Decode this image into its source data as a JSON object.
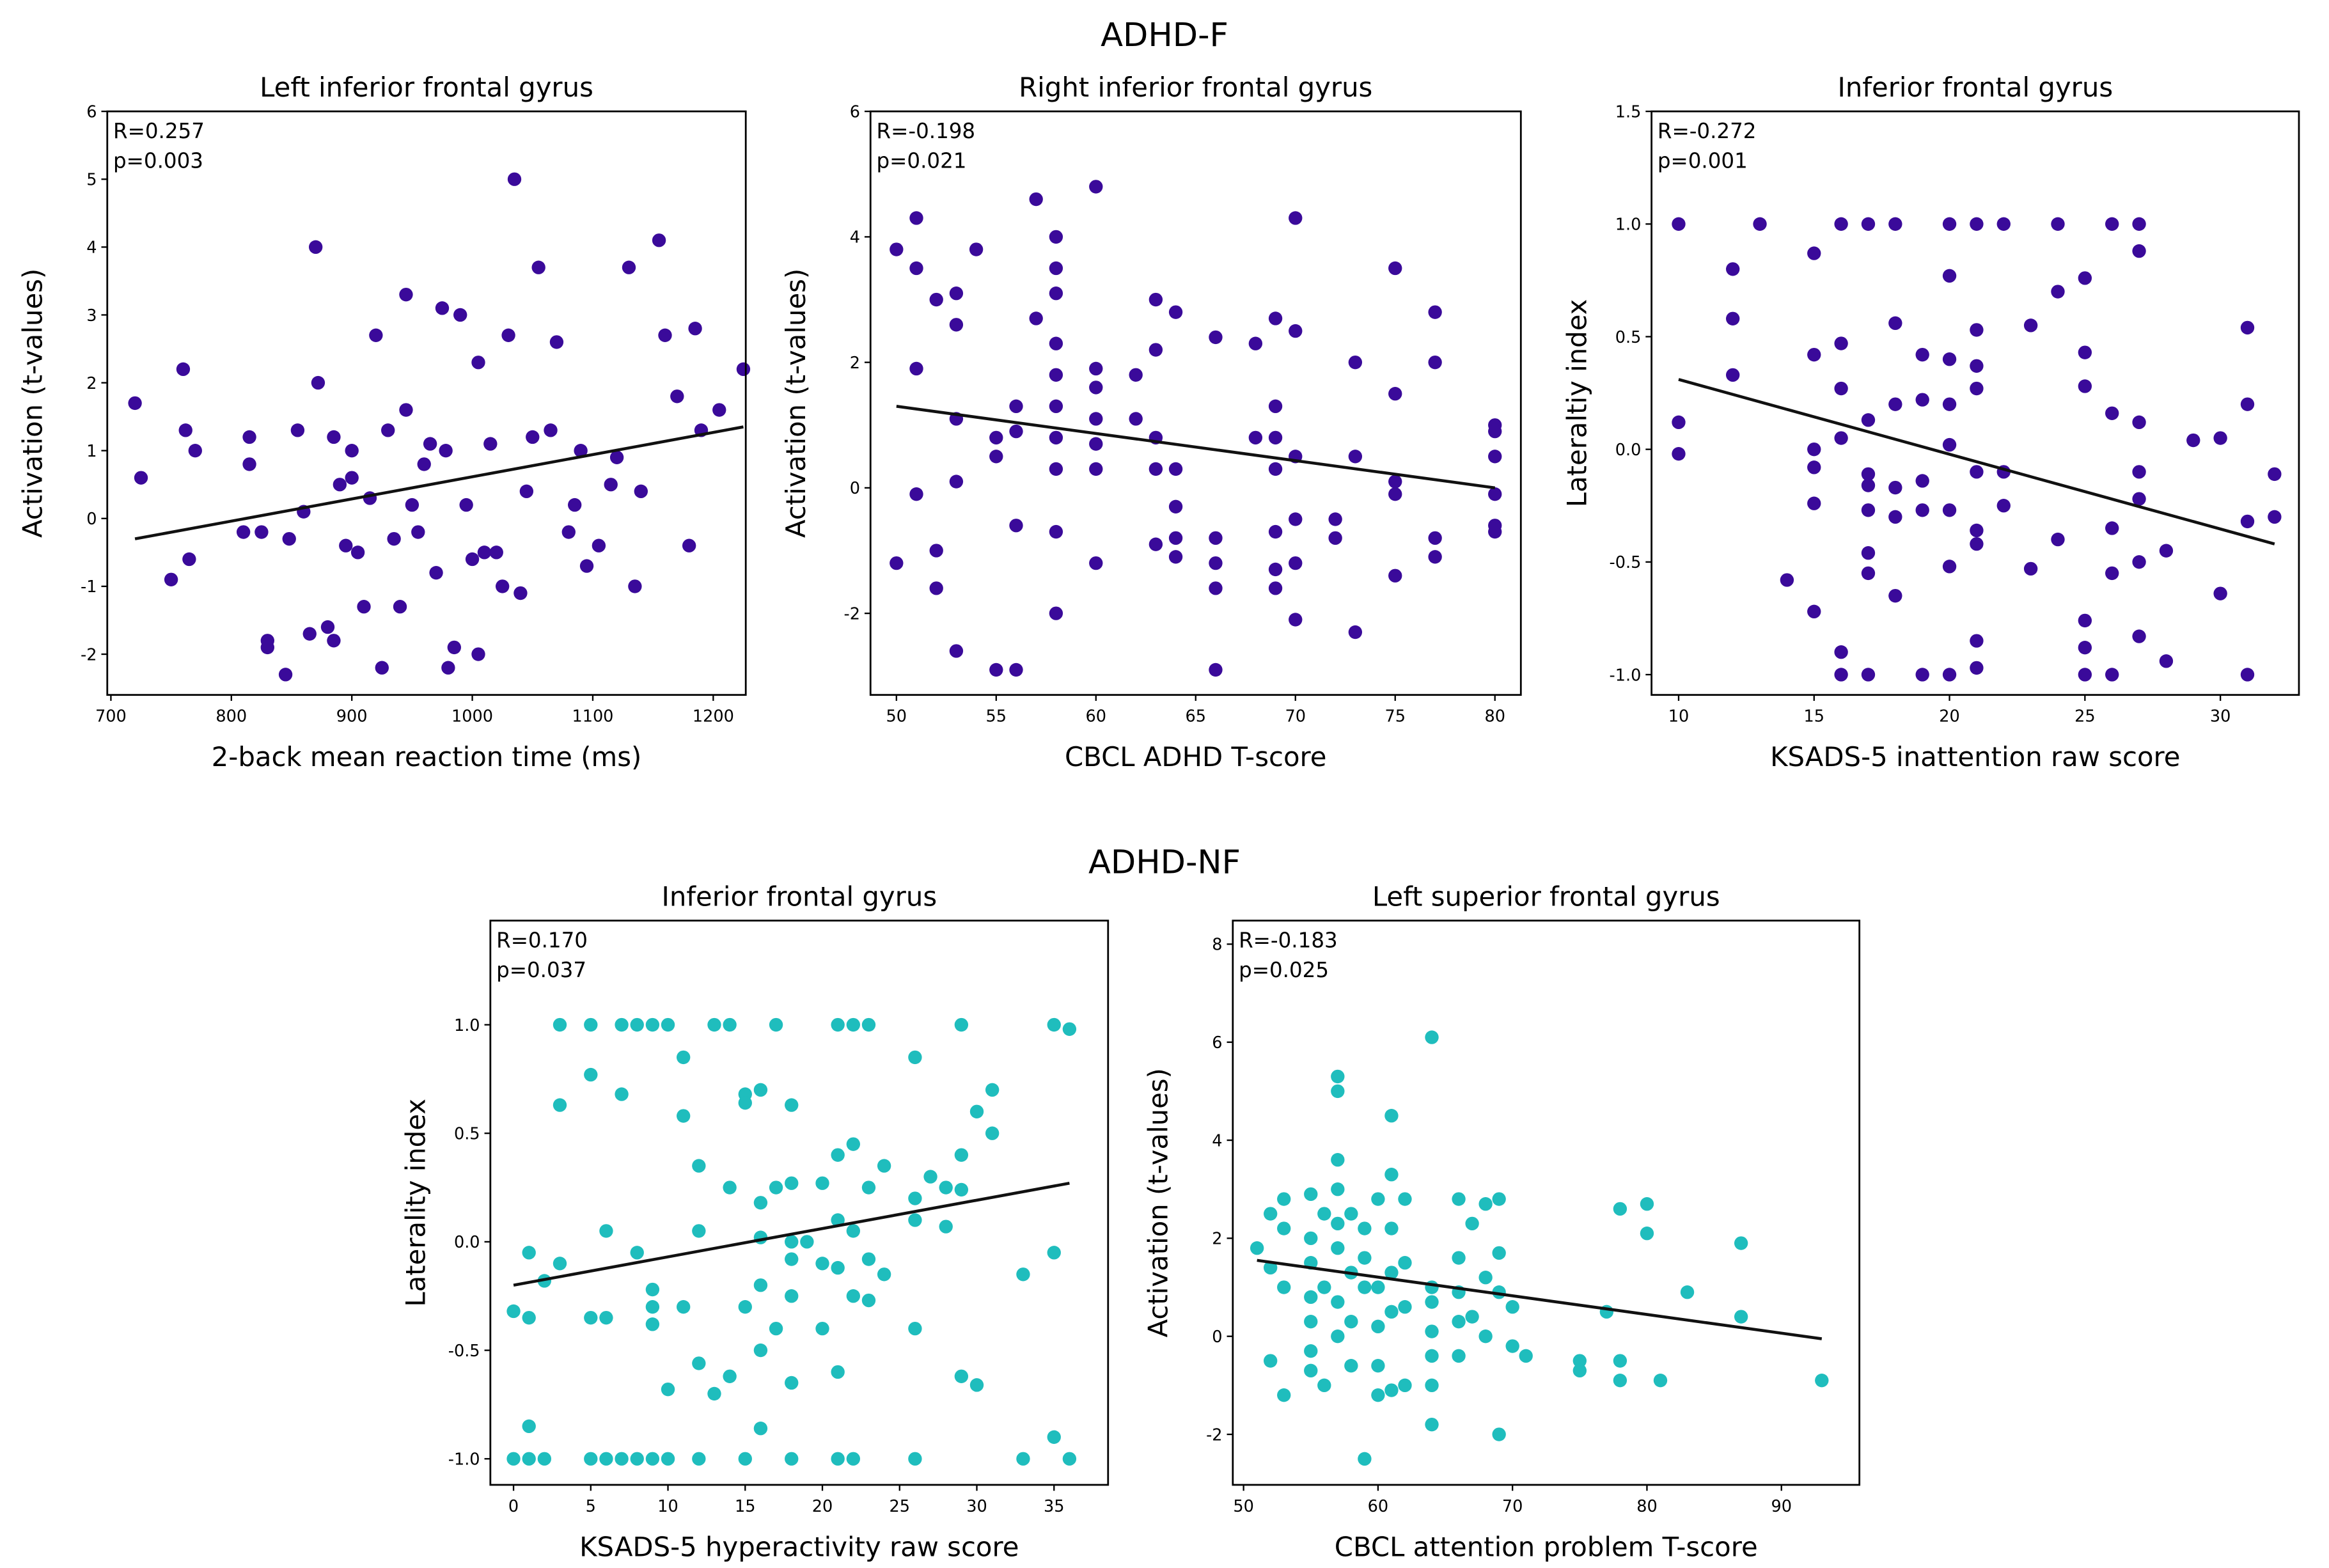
{
  "headings": [
    "ADHD-F",
    "ADHD-NF"
  ],
  "chart_data": [
    {
      "type": "scatter",
      "title": "Left inferior frontal gyrus",
      "x_label": "2-back mean reaction time (ms)",
      "y_label": "Activation (t-values)",
      "annotations": [
        "R=0.257",
        "p=0.003"
      ],
      "color": "#3a0a9a",
      "xlim": [
        697,
        1227
      ],
      "ylim": [
        -2.6,
        6.0
      ],
      "xticks": [
        700,
        800,
        900,
        1000,
        1100,
        1200
      ],
      "yticks": [
        -2,
        -1,
        0,
        1,
        2,
        3,
        4,
        5,
        6
      ],
      "x": [
        720,
        725,
        750,
        760,
        762,
        765,
        770,
        810,
        815,
        815,
        825,
        830,
        830,
        845,
        848,
        855,
        860,
        865,
        870,
        872,
        880,
        885,
        885,
        890,
        895,
        900,
        900,
        905,
        910,
        915,
        920,
        925,
        930,
        935,
        940,
        945,
        945,
        950,
        955,
        960,
        965,
        970,
        975,
        978,
        980,
        985,
        990,
        995,
        1000,
        1005,
        1005,
        1010,
        1015,
        1020,
        1025,
        1030,
        1035,
        1040,
        1045,
        1050,
        1055,
        1065,
        1070,
        1080,
        1085,
        1090,
        1095,
        1105,
        1115,
        1120,
        1130,
        1135,
        1140,
        1155,
        1160,
        1170,
        1180,
        1185,
        1190,
        1205,
        1225
      ],
      "y": [
        1.7,
        0.6,
        -0.9,
        2.2,
        1.3,
        -0.6,
        1.0,
        -0.2,
        1.2,
        0.8,
        -0.2,
        -1.8,
        -1.9,
        -2.3,
        -0.3,
        1.3,
        0.1,
        -1.7,
        4.0,
        2.0,
        -1.6,
        1.2,
        -1.8,
        0.5,
        -0.4,
        1.0,
        0.6,
        -0.5,
        -1.3,
        0.3,
        2.7,
        -2.2,
        1.3,
        -0.3,
        -1.3,
        3.3,
        1.6,
        0.2,
        -0.2,
        0.8,
        1.1,
        -0.8,
        3.1,
        1.0,
        -2.2,
        -1.9,
        3.0,
        0.2,
        -0.6,
        2.3,
        -2.0,
        -0.5,
        1.1,
        -0.5,
        -1.0,
        2.7,
        5.0,
        -1.1,
        0.4,
        1.2,
        3.7,
        1.3,
        2.6,
        -0.2,
        0.2,
        1.0,
        -0.7,
        -0.4,
        0.5,
        0.9,
        3.7,
        -1.0,
        0.4,
        4.1,
        2.7,
        1.8,
        -0.4,
        2.8,
        1.3,
        1.6,
        2.2
      ],
      "trend_line": {
        "x": [
          720,
          1225
        ],
        "y": [
          -0.3,
          1.35
        ]
      }
    },
    {
      "type": "scatter",
      "title": "Right inferior frontal gyrus",
      "x_label": "CBCL ADHD T-score",
      "y_label": "Activation (t-values)",
      "annotations": [
        "R=-0.198",
        "p=0.021"
      ],
      "color": "#3a0a9a",
      "xlim": [
        48.7,
        81.3
      ],
      "ylim": [
        -3.3,
        6.0
      ],
      "xticks": [
        50,
        55,
        60,
        65,
        70,
        75,
        80
      ],
      "yticks": [
        -2,
        0,
        2,
        4,
        6
      ],
      "x": [
        50,
        50,
        51,
        51,
        51,
        51,
        52,
        52,
        52,
        53,
        53,
        53,
        53,
        53,
        54,
        55,
        55,
        55,
        56,
        56,
        56,
        56,
        57,
        57,
        58,
        58,
        58,
        58,
        58,
        58,
        58,
        58,
        58,
        58,
        60,
        60,
        60,
        60,
        60,
        60,
        60,
        62,
        62,
        63,
        63,
        63,
        63,
        63,
        64,
        64,
        64,
        64,
        64,
        66,
        66,
        66,
        66,
        66,
        68,
        68,
        69,
        69,
        69,
        69,
        69,
        69,
        69,
        70,
        70,
        70,
        70,
        70,
        70,
        72,
        72,
        73,
        73,
        73,
        75,
        75,
        75,
        75,
        75,
        77,
        77,
        77,
        77,
        80,
        80,
        80,
        80,
        80,
        80
      ],
      "y": [
        3.8,
        -1.2,
        4.3,
        3.5,
        1.9,
        -0.1,
        3.0,
        -1.0,
        -1.6,
        3.1,
        2.6,
        1.1,
        0.1,
        -2.6,
        3.8,
        0.8,
        0.5,
        -2.9,
        1.3,
        0.9,
        -0.6,
        -2.9,
        4.6,
        2.7,
        4.0,
        3.5,
        3.1,
        2.3,
        1.8,
        1.3,
        0.8,
        0.3,
        -0.7,
        -2.0,
        4.8,
        1.9,
        1.6,
        1.1,
        0.7,
        0.3,
        -1.2,
        1.8,
        1.1,
        3.0,
        2.2,
        0.8,
        0.3,
        -0.9,
        2.8,
        0.3,
        -0.3,
        -0.8,
        -1.1,
        2.4,
        -0.8,
        -1.2,
        -1.6,
        -2.9,
        2.3,
        0.8,
        2.7,
        1.3,
        0.8,
        0.3,
        -0.7,
        -1.3,
        -1.6,
        4.3,
        2.5,
        0.5,
        -0.5,
        -1.2,
        -2.1,
        -0.5,
        -0.8,
        2.0,
        0.5,
        -2.3,
        3.5,
        1.5,
        0.1,
        -0.1,
        -1.4,
        2.8,
        2.0,
        -0.8,
        -1.1,
        1.0,
        0.9,
        0.5,
        -0.1,
        -0.6,
        -0.7
      ],
      "trend_line": {
        "x": [
          50,
          80
        ],
        "y": [
          1.3,
          0.0
        ]
      }
    },
    {
      "type": "scatter",
      "title": "Inferior frontal gyrus",
      "x_label": "KSADS-5 inattention raw score",
      "y_label": "Lateraltiy index",
      "annotations": [
        "R=-0.272",
        "p=0.001"
      ],
      "color": "#3a0a9a",
      "xlim": [
        9.0,
        32.9
      ],
      "ylim": [
        -1.09,
        1.5
      ],
      "xticks": [
        10,
        15,
        20,
        25,
        30
      ],
      "yticks": [
        {
          "value": -1,
          "label": "-1.0"
        },
        {
          "value": -0.5,
          "label": "-0.5"
        },
        {
          "value": 0,
          "label": "0.0"
        },
        {
          "value": 0.5,
          "label": "0.5"
        },
        {
          "value": 1,
          "label": "1.0"
        },
        {
          "value": 1.5,
          "label": "1.5"
        }
      ],
      "x": [
        10,
        10,
        10,
        12,
        12,
        12,
        13,
        14,
        15,
        15,
        15,
        15,
        15,
        15,
        16,
        16,
        16,
        16,
        16,
        16,
        17,
        17,
        17,
        17,
        17,
        17,
        17,
        17,
        18,
        18,
        18,
        18,
        18,
        18,
        19,
        19,
        19,
        19,
        19,
        20,
        20,
        20,
        20,
        20,
        20,
        20,
        20,
        21,
        21,
        21,
        21,
        21,
        21,
        21,
        21,
        21,
        22,
        22,
        22,
        23,
        23,
        24,
        24,
        24,
        25,
        25,
        25,
        25,
        25,
        25,
        26,
        26,
        26,
        26,
        26,
        27,
        27,
        27,
        27,
        27,
        27,
        27,
        28,
        28,
        29,
        30,
        30,
        31,
        31,
        31,
        31,
        32,
        32
      ],
      "y": [
        1.0,
        0.12,
        -0.02,
        0.8,
        0.58,
        0.33,
        1.0,
        -0.58,
        0.87,
        0.42,
        0,
        -0.08,
        -0.24,
        -0.72,
        1.0,
        0.47,
        0.27,
        -0.9,
        -1.0,
        0.05,
        1.0,
        0.13,
        -0.11,
        -0.16,
        -0.27,
        -0.46,
        -0.55,
        -1.0,
        1.0,
        0.56,
        0.2,
        -0.17,
        -0.3,
        -0.65,
        0.42,
        0.22,
        -0.14,
        -0.27,
        -1.0,
        1.0,
        0.77,
        0.4,
        0.2,
        0.02,
        -0.27,
        -0.52,
        -1.0,
        1.0,
        0.53,
        0.37,
        0.27,
        -0.1,
        -0.36,
        -0.42,
        -0.85,
        -0.97,
        1.0,
        -0.25,
        -0.1,
        0.55,
        -0.53,
        1.0,
        0.7,
        -0.4,
        0.76,
        0.43,
        0.28,
        -0.76,
        -0.88,
        -1.0,
        1.0,
        0.16,
        -0.35,
        -0.55,
        -1.0,
        1.0,
        0.88,
        0.12,
        -0.1,
        -0.22,
        -0.5,
        -0.83,
        -0.45,
        -0.94,
        0.04,
        0.05,
        -0.64,
        0.54,
        0.2,
        -0.32,
        -1.0,
        -0.11,
        -0.3
      ],
      "trend_line": {
        "x": [
          10,
          32
        ],
        "y": [
          0.31,
          -0.42
        ]
      }
    },
    {
      "type": "scatter",
      "title": "Inferior frontal gyrus",
      "x_label": "KSADS-5 hyperactivity raw score",
      "y_label": "Laterality index",
      "annotations": [
        "R=0.170",
        "p=0.037"
      ],
      "color": "#1fbdbd",
      "xlim": [
        -1.5,
        38.5
      ],
      "ylim": [
        -1.12,
        1.48
      ],
      "xticks": [
        0,
        5,
        10,
        15,
        20,
        25,
        30,
        35
      ],
      "yticks": [
        {
          "value": -1,
          "label": "-1.0"
        },
        {
          "value": -0.5,
          "label": "-0.5"
        },
        {
          "value": 0,
          "label": "0.0"
        },
        {
          "value": 0.5,
          "label": "0.5"
        },
        {
          "value": 1,
          "label": "1.0"
        }
      ],
      "x": [
        0,
        0,
        1,
        1,
        1,
        1,
        2,
        2,
        3,
        3,
        3,
        5,
        5,
        5,
        5,
        6,
        6,
        6,
        7,
        7,
        7,
        8,
        8,
        8,
        9,
        9,
        9,
        9,
        9,
        10,
        10,
        10,
        11,
        11,
        11,
        12,
        12,
        12,
        12,
        13,
        13,
        14,
        14,
        14,
        15,
        15,
        15,
        15,
        16,
        16,
        16,
        16,
        16,
        16,
        17,
        17,
        17,
        18,
        18,
        18,
        18,
        18,
        18,
        18,
        19,
        20,
        20,
        20,
        21,
        21,
        21,
        21,
        21,
        21,
        22,
        22,
        22,
        22,
        22,
        23,
        23,
        23,
        23,
        24,
        24,
        26,
        26,
        26,
        26,
        26,
        27,
        28,
        28,
        29,
        29,
        29,
        29,
        30,
        30,
        31,
        31,
        33,
        33,
        35,
        35,
        35,
        36,
        36
      ],
      "y": [
        -0.32,
        -1.0,
        -0.05,
        -0.35,
        -0.85,
        -1.0,
        -0.18,
        -1.0,
        1.0,
        0.63,
        -0.1,
        1.0,
        0.77,
        -0.35,
        -1.0,
        0.05,
        -0.35,
        -1.0,
        1.0,
        0.68,
        -1.0,
        1.0,
        -0.05,
        -1.0,
        1.0,
        -0.22,
        -0.3,
        -0.38,
        -1.0,
        1.0,
        -0.68,
        -1.0,
        0.85,
        0.58,
        -0.3,
        0.35,
        0.05,
        -0.56,
        -1.0,
        1.0,
        -0.7,
        1.0,
        0.25,
        -0.62,
        0.68,
        0.64,
        -0.3,
        -1.0,
        0.7,
        0.18,
        0.02,
        -0.2,
        -0.5,
        -0.86,
        1.0,
        0.25,
        -0.4,
        0.63,
        0.27,
        0.0,
        -0.08,
        -0.25,
        -0.65,
        -1.0,
        0.0,
        0.27,
        -0.1,
        -0.4,
        1.0,
        0.4,
        0.1,
        -0.12,
        -0.6,
        -1.0,
        1.0,
        0.45,
        0.05,
        -0.25,
        -1.0,
        1.0,
        0.25,
        -0.08,
        -0.27,
        0.35,
        -0.15,
        0.85,
        0.2,
        0.1,
        -0.4,
        -1.0,
        0.3,
        0.25,
        0.07,
        1.0,
        0.4,
        0.24,
        -0.62,
        0.6,
        -0.66,
        0.7,
        0.5,
        -0.15,
        -1.0,
        1.0,
        -0.05,
        -0.9,
        0.98,
        -1.0
      ],
      "trend_line": {
        "x": [
          0,
          36
        ],
        "y": [
          -0.2,
          0.27
        ]
      }
    },
    {
      "type": "scatter",
      "title": "Left superior frontal gyrus",
      "x_label": "CBCL attention problem T-score",
      "y_label": "Activation (t-values)",
      "annotations": [
        "R=-0.183",
        "p=0.025"
      ],
      "color": "#1fbdbd",
      "xlim": [
        49.2,
        95.8
      ],
      "ylim": [
        -3.03,
        8.48
      ],
      "xticks": [
        50,
        60,
        70,
        80,
        90
      ],
      "yticks": [
        -2,
        0,
        2,
        4,
        6,
        8
      ],
      "x": [
        51,
        52,
        52,
        52,
        53,
        53,
        53,
        53,
        55,
        55,
        55,
        55,
        55,
        55,
        55,
        56,
        56,
        56,
        57,
        57,
        57,
        57,
        57,
        57,
        57,
        57,
        58,
        58,
        58,
        58,
        59,
        59,
        59,
        59,
        60,
        60,
        60,
        60,
        60,
        61,
        61,
        61,
        61,
        61,
        61,
        62,
        62,
        62,
        62,
        64,
        64,
        64,
        64,
        64,
        64,
        64,
        66,
        66,
        66,
        66,
        66,
        67,
        67,
        68,
        68,
        68,
        69,
        69,
        69,
        69,
        70,
        70,
        71,
        75,
        75,
        77,
        78,
        78,
        78,
        80,
        80,
        81,
        83,
        87,
        87,
        93
      ],
      "y": [
        1.8,
        2.5,
        1.4,
        -0.5,
        2.8,
        2.2,
        1.0,
        -1.2,
        2.9,
        2.0,
        1.5,
        0.8,
        0.3,
        -0.3,
        -0.7,
        2.5,
        1.0,
        -1.0,
        5.3,
        5.0,
        3.6,
        3.0,
        2.3,
        1.8,
        0.7,
        0.0,
        2.5,
        1.3,
        0.3,
        -0.6,
        2.2,
        1.6,
        1.0,
        -2.5,
        2.8,
        1.0,
        0.2,
        -0.6,
        -1.2,
        4.5,
        3.3,
        2.2,
        1.3,
        0.5,
        -1.1,
        2.8,
        1.5,
        0.6,
        -1.0,
        6.1,
        1.0,
        0.7,
        0.1,
        -0.4,
        -1.0,
        -1.8,
        2.8,
        1.6,
        0.9,
        0.3,
        -0.4,
        2.3,
        0.4,
        2.7,
        1.2,
        0.0,
        2.8,
        1.7,
        0.9,
        -2.0,
        0.6,
        -0.2,
        -0.4,
        -0.5,
        -0.7,
        0.5,
        2.6,
        -0.5,
        -0.9,
        2.7,
        2.1,
        -0.9,
        0.9,
        1.9,
        0.4,
        -0.9
      ],
      "trend_line": {
        "x": [
          51,
          93
        ],
        "y": [
          1.55,
          -0.05
        ]
      }
    }
  ]
}
